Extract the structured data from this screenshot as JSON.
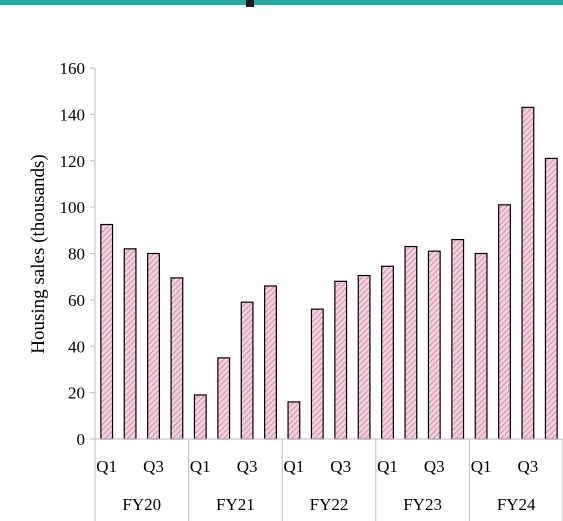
{
  "colors": {
    "header_accent": "#2aa7a1",
    "bar_fill": "#f6cfe0",
    "bar_hatch": "#b56a8e",
    "bar_stroke": "#000000",
    "axis": "#bfbfbf"
  },
  "chart_data": {
    "type": "bar",
    "ylabel": "Housing sales (thousands)",
    "ylim": [
      0,
      160
    ],
    "yticks": [
      0,
      20,
      40,
      60,
      80,
      100,
      120,
      140,
      160
    ],
    "grid": false,
    "groups": [
      {
        "label": "FY20",
        "quarters": [
          "Q1",
          "",
          "Q3",
          ""
        ],
        "values": [
          92.5,
          82,
          80,
          69.5
        ]
      },
      {
        "label": "FY21",
        "quarters": [
          "Q1",
          "",
          "Q3",
          ""
        ],
        "values": [
          19,
          35,
          59,
          66
        ]
      },
      {
        "label": "FY22",
        "quarters": [
          "Q1",
          "",
          "Q3",
          ""
        ],
        "values": [
          16,
          56,
          68,
          70.5
        ]
      },
      {
        "label": "FY23",
        "quarters": [
          "Q1",
          "",
          "Q3",
          ""
        ],
        "values": [
          74.5,
          83,
          81,
          86
        ]
      },
      {
        "label": "FY24",
        "quarters": [
          "Q1",
          "",
          "Q3",
          ""
        ],
        "values": [
          80,
          101,
          143,
          121
        ]
      }
    ]
  }
}
